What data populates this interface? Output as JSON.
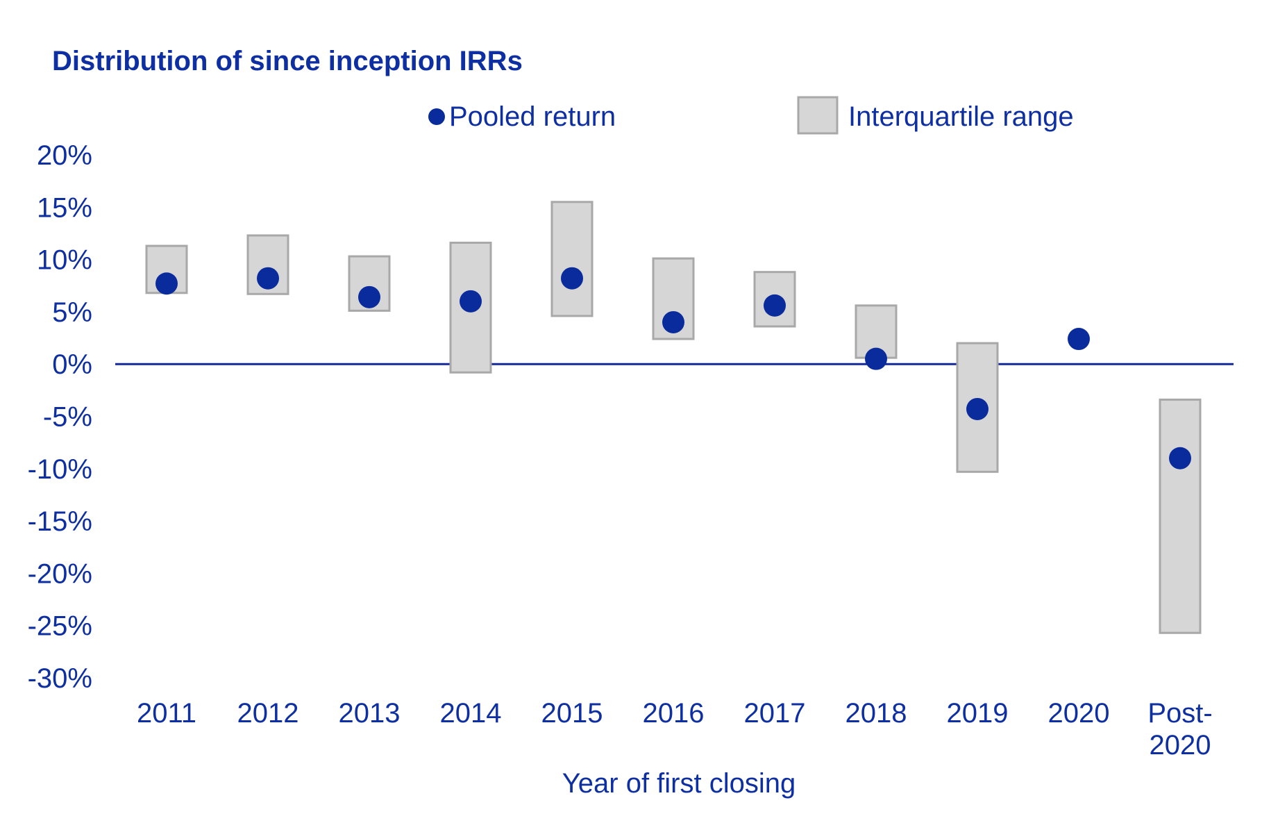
{
  "chart_data": {
    "type": "scatter",
    "title": "Distribution of since inception IRRs",
    "xlabel": "Year of first closing",
    "ylabel": "",
    "categories": [
      "2011",
      "2012",
      "2013",
      "2014",
      "2015",
      "2016",
      "2017",
      "2018",
      "2019",
      "2020",
      "Post-2020"
    ],
    "category_lines": [
      [
        "2011"
      ],
      [
        "2012"
      ],
      [
        "2013"
      ],
      [
        "2014"
      ],
      [
        "2015"
      ],
      [
        "2016"
      ],
      [
        "2017"
      ],
      [
        "2018"
      ],
      [
        "2019"
      ],
      [
        "2020"
      ],
      [
        "Post-",
        "2020"
      ]
    ],
    "ylim": [
      -30,
      20
    ],
    "yticks": [
      20,
      15,
      10,
      5,
      0,
      -5,
      -10,
      -15,
      -20,
      -25,
      -30
    ],
    "ytick_labels": [
      "20%",
      "15%",
      "10%",
      "5%",
      "0%",
      "-5%",
      "-10%",
      "-15%",
      "-20%",
      "-25%",
      "-30%"
    ],
    "grid": false,
    "legend_position": "top",
    "series": [
      {
        "name": "Pooled return",
        "kind": "point",
        "values": [
          7.7,
          8.2,
          6.4,
          6.0,
          8.2,
          4.0,
          5.6,
          0.5,
          -4.3,
          2.4,
          -9.0
        ]
      },
      {
        "name": "Interquartile range",
        "kind": "range",
        "low": [
          6.8,
          6.7,
          5.1,
          -0.8,
          4.6,
          2.4,
          3.6,
          0.6,
          -10.3,
          null,
          -25.7
        ],
        "high": [
          11.3,
          12.3,
          10.3,
          11.6,
          15.5,
          10.1,
          8.8,
          5.6,
          2.0,
          null,
          -3.4
        ]
      }
    ]
  },
  "colors": {
    "text": "#0e2fa2",
    "point": "#0a2b9b",
    "range_fill": "#d6d6d6",
    "range_stroke": "#a8a8a8",
    "zero_line": "#14289a"
  }
}
